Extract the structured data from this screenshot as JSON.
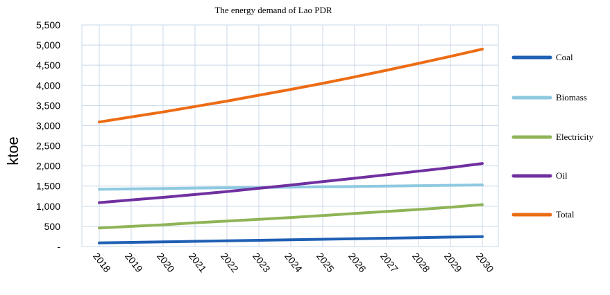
{
  "chart_data": {
    "type": "line",
    "title": "The energy demand of Lao PDR",
    "xlabel": "",
    "ylabel": "ktoe",
    "x": [
      "2018",
      "2019",
      "2020",
      "2021",
      "2022",
      "2023",
      "2024",
      "2025",
      "2026",
      "2027",
      "2028",
      "2029",
      "2030"
    ],
    "ylim": [
      0,
      5500
    ],
    "yticks": [
      0,
      500,
      1000,
      1500,
      2000,
      2500,
      3000,
      3500,
      4000,
      4500,
      5000,
      5500
    ],
    "ytick_labels": [
      "-",
      "500",
      "1,000",
      "1,500",
      "2,000",
      "2,500",
      "3,000",
      "3,500",
      "4,000",
      "4,500",
      "5,000",
      "5,500"
    ],
    "grid": true,
    "legend_position": "right",
    "series": [
      {
        "name": "Coal",
        "color": "#1f5fb4",
        "values": [
          90,
          103,
          116,
          129,
          142,
          155,
          168,
          181,
          194,
          207,
          220,
          233,
          246
        ]
      },
      {
        "name": "Biomass",
        "color": "#8ec9e0",
        "values": [
          1420,
          1430,
          1440,
          1450,
          1460,
          1465,
          1475,
          1485,
          1490,
          1500,
          1510,
          1520,
          1530
        ]
      },
      {
        "name": "Electricity",
        "color": "#8fb457",
        "values": [
          460,
          500,
          540,
          590,
          630,
          675,
          720,
          770,
          820,
          870,
          920,
          975,
          1040
        ]
      },
      {
        "name": "Oil",
        "color": "#7030a0",
        "values": [
          1090,
          1155,
          1220,
          1290,
          1365,
          1445,
          1525,
          1610,
          1695,
          1780,
          1870,
          1960,
          2060
        ]
      },
      {
        "name": "Total",
        "color": "#ec6c14",
        "values": [
          3090,
          3215,
          3340,
          3475,
          3610,
          3755,
          3900,
          4050,
          4210,
          4375,
          4545,
          4720,
          4900
        ]
      }
    ]
  }
}
